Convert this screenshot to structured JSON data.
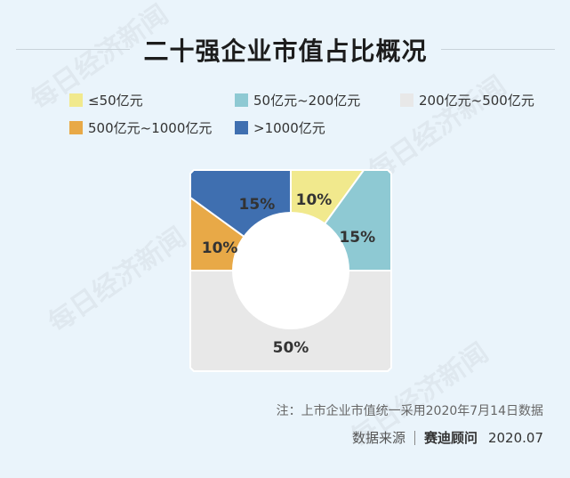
{
  "title": "二十强企业市值占比概况",
  "watermark": "每日经济新闻",
  "chart_data": {
    "type": "pie",
    "donut": true,
    "title": "二十强企业市值占比概况",
    "categories": [
      "≤50亿元",
      "50亿元~200亿元",
      "200亿元~500亿元",
      "500亿元~1000亿元",
      ">1000亿元"
    ],
    "values": [
      10,
      15,
      50,
      10,
      15
    ],
    "value_labels": [
      "10%",
      "15%",
      "50%",
      "10%",
      "15%"
    ],
    "colors": [
      "#f1e98d",
      "#8ec9d3",
      "#e8e8e8",
      "#e8a947",
      "#3f6fb0"
    ],
    "legend_placement": "top"
  },
  "note": "注：上市企业市值统一采用2020年7月14日数据",
  "source": {
    "label": "数据来源",
    "org": "赛迪顾问",
    "date": "2020.07"
  }
}
